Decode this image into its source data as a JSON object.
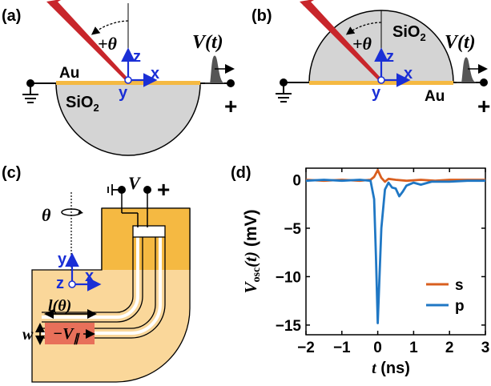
{
  "panels": {
    "a": {
      "label": "(a)",
      "metal": "Au",
      "substrate": "SiO",
      "substrate_sub": "2",
      "angle": "+θ",
      "signal": "V(t)",
      "plus": "+",
      "axes": {
        "z": "z",
        "x": "x",
        "y": "y"
      }
    },
    "b": {
      "label": "(b)",
      "metal": "Au",
      "substrate": "SiO",
      "substrate_sub": "2",
      "angle": "+θ",
      "signal": "V(t)",
      "plus": "+",
      "axes": {
        "z": "z",
        "x": "x",
        "y": "y"
      }
    },
    "c": {
      "label": "(c)",
      "theta": "θ",
      "voltage": "V",
      "plus": "+",
      "length": "l(θ)",
      "width": "w",
      "vpar": "−V",
      "vpar_sub": "∥",
      "axes": {
        "z": "z",
        "x": "x",
        "y": "y"
      }
    },
    "d": {
      "label": "(d)"
    }
  },
  "colors": {
    "gold": "#f5b942",
    "gold_light": "#fad79a",
    "orange_red": "#e8705a",
    "silica": "#d4d4d4",
    "laser": "#c8262b",
    "axis_blue": "#1a2fd6",
    "s_color": "#d95f1f",
    "p_color": "#1f77c4"
  },
  "chart_data": {
    "type": "line",
    "xlabel": "t (ns)",
    "ylabel": "V_osc(t) (mV)",
    "xlim": [
      -2,
      3
    ],
    "ylim": [
      -16,
      1.2
    ],
    "xticks": [
      -2,
      -1,
      0,
      1,
      2,
      3
    ],
    "xtick_labels": [
      "−2",
      "−1",
      "0",
      "1",
      "2",
      "3"
    ],
    "yticks": [
      0,
      -5,
      -10,
      -15
    ],
    "ytick_labels": [
      "0",
      "−5",
      "−10",
      "−15"
    ],
    "legend_position": "bottom-right",
    "series": [
      {
        "name": "s",
        "color": "#d95f1f",
        "x": [
          -2,
          -1.5,
          -1,
          -0.5,
          -0.2,
          -0.1,
          0,
          0.1,
          0.2,
          0.3,
          0.5,
          0.8,
          1.2,
          1.6,
          2,
          2.5,
          3
        ],
        "y": [
          0,
          -0.1,
          0,
          -0.1,
          0,
          0.3,
          1.0,
          0.2,
          -0.2,
          0.1,
          0,
          -0.1,
          0,
          -0.1,
          0,
          0,
          0
        ]
      },
      {
        "name": "p",
        "color": "#1f77c4",
        "x": [
          -2,
          -1.5,
          -1,
          -0.5,
          -0.2,
          -0.1,
          -0.05,
          0,
          0.05,
          0.1,
          0.2,
          0.3,
          0.4,
          0.5,
          0.6,
          0.7,
          0.8,
          1.0,
          1.2,
          1.5,
          2,
          2.5,
          3
        ],
        "y": [
          -0.1,
          0,
          -0.1,
          0,
          -0.1,
          -2,
          -8,
          -14.8,
          -10,
          -5,
          -1.0,
          -0.3,
          -0.8,
          -0.9,
          -1.7,
          -1.2,
          -0.6,
          -0.3,
          -0.5,
          -0.2,
          -0.2,
          -0.1,
          -0.1
        ]
      }
    ]
  }
}
